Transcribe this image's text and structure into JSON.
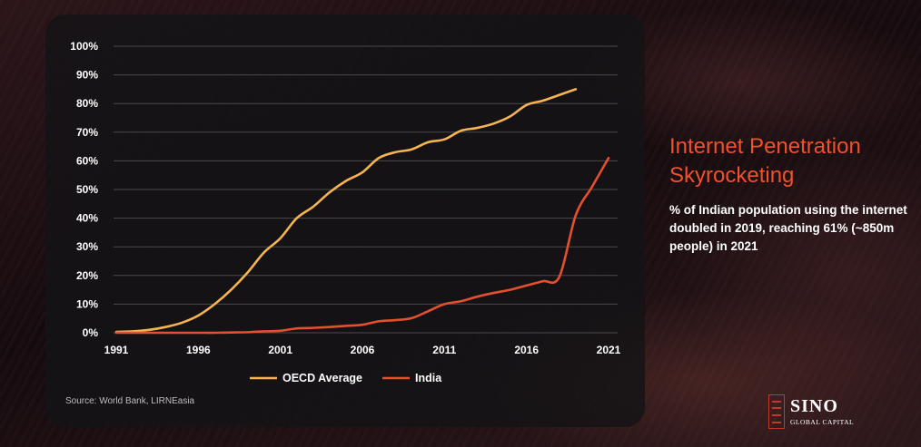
{
  "header": {
    "title": "Internet Penetration Skyrocketing",
    "subtitle": "% of Indian population using the internet doubled in 2019, reaching 61% (~850m people) in 2021"
  },
  "source": "Source: World Bank, LIRNEasia",
  "logo": {
    "name": "SINO",
    "tagline": "GLOBAL CAPITAL"
  },
  "colors": {
    "oecd": "#f5b451",
    "india": "#e4502e",
    "title": "#f0502b"
  },
  "chart_data": {
    "type": "line",
    "title": "",
    "xlabel": "",
    "ylabel": "",
    "xlim": [
      1991,
      2021
    ],
    "ylim": [
      0,
      100
    ],
    "x_ticks": [
      "1991",
      "1996",
      "2001",
      "2006",
      "2011",
      "2016",
      "2021"
    ],
    "y_ticks": [
      "0%",
      "10%",
      "20%",
      "30%",
      "40%",
      "50%",
      "60%",
      "70%",
      "80%",
      "90%",
      "100%"
    ],
    "grid": true,
    "legend": "bottom-center",
    "series": [
      {
        "name": "OECD Average",
        "color": "#f5b451",
        "x": [
          1991,
          1992,
          1993,
          1994,
          1995,
          1996,
          1997,
          1998,
          1999,
          2000,
          2001,
          2002,
          2003,
          2004,
          2005,
          2006,
          2007,
          2008,
          2009,
          2010,
          2011,
          2012,
          2013,
          2014,
          2015,
          2016,
          2017,
          2018,
          2019
        ],
        "values": [
          0.3,
          0.5,
          1.0,
          2.0,
          3.5,
          6,
          10,
          15,
          21,
          28,
          33,
          40,
          44,
          49,
          53,
          56,
          61,
          63,
          64,
          66.5,
          67.5,
          70.5,
          71.5,
          73,
          75.5,
          79.5,
          81,
          83,
          85
        ]
      },
      {
        "name": "India",
        "color": "#e4502e",
        "x": [
          1991,
          1992,
          1993,
          1994,
          1995,
          1996,
          1997,
          1998,
          1999,
          2000,
          2001,
          2002,
          2003,
          2004,
          2005,
          2006,
          2007,
          2008,
          2009,
          2010,
          2011,
          2012,
          2013,
          2014,
          2015,
          2016,
          2017,
          2018,
          2019,
          2020,
          2021
        ],
        "values": [
          0,
          0,
          0,
          0,
          0,
          0,
          0,
          0.1,
          0.2,
          0.5,
          0.7,
          1.5,
          1.7,
          2.0,
          2.4,
          2.8,
          4.0,
          4.4,
          5.1,
          7.5,
          10,
          11,
          12.6,
          13.9,
          15,
          16.5,
          18,
          19.5,
          41,
          51,
          61
        ]
      }
    ]
  }
}
